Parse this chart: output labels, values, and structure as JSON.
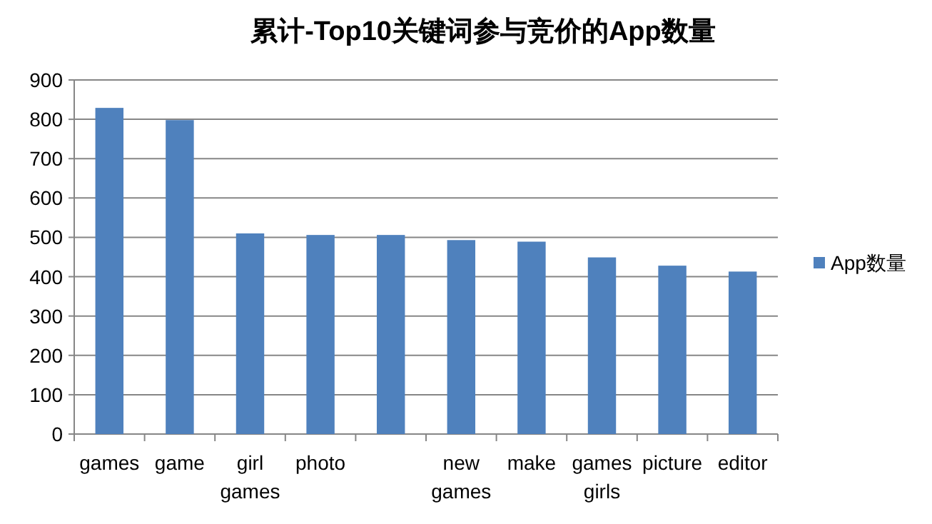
{
  "chart_data": {
    "type": "bar",
    "title": "累计-Top10关键词参与竞价的App数量",
    "categories": [
      "games",
      "game",
      "girl games",
      "photo",
      null,
      "new games",
      "make",
      "games girls",
      "picture",
      "editor"
    ],
    "series": [
      {
        "name": "App数量",
        "color": "#4f81bd",
        "values": [
          829,
          798,
          510,
          506,
          506,
          493,
          489,
          449,
          428,
          413
        ]
      }
    ],
    "ylim": [
      0,
      900
    ],
    "yticks": [
      0,
      100,
      200,
      300,
      400,
      500,
      600,
      700,
      800,
      900
    ],
    "grid": "y",
    "legend": "right"
  }
}
